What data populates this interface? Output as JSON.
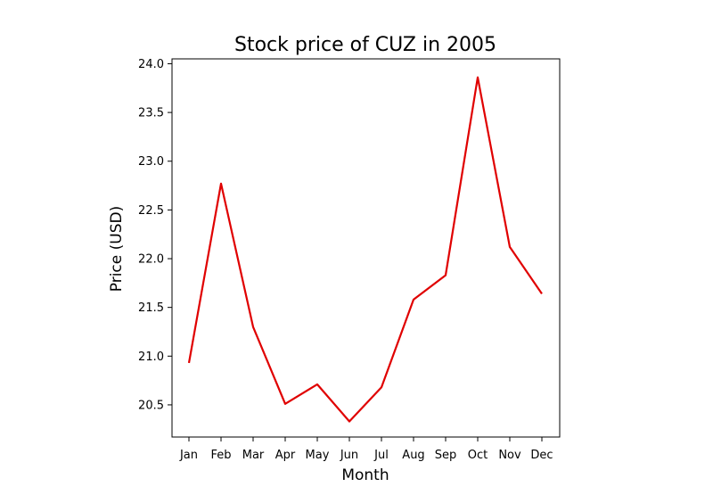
{
  "chart_data": {
    "type": "line",
    "title": "Stock price of CUZ in 2005",
    "xlabel": "Month",
    "ylabel": "Price (USD)",
    "categories": [
      "Jan",
      "Feb",
      "Mar",
      "Apr",
      "May",
      "Jun",
      "Jul",
      "Aug",
      "Sep",
      "Oct",
      "Nov",
      "Dec"
    ],
    "series": [
      {
        "values": [
          20.93,
          22.77,
          21.3,
          20.51,
          20.71,
          20.33,
          20.68,
          21.58,
          21.83,
          23.86,
          22.12,
          21.64
        ],
        "color": "#e00000"
      }
    ],
    "ylim": [
      20.17,
      24.05
    ],
    "yticks": [
      20.5,
      21.0,
      21.5,
      22.0,
      22.5,
      23.0,
      23.5,
      24.0
    ],
    "ytick_labels": [
      "20.5",
      "21.0",
      "21.5",
      "22.0",
      "22.5",
      "23.0",
      "23.5",
      "24.0"
    ],
    "grid": false,
    "legend": "none"
  }
}
